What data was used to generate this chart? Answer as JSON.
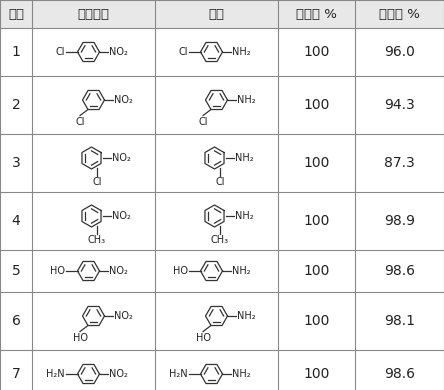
{
  "headers": [
    "序号",
    "反应原料",
    "产物",
    "转化率 %",
    "选择性 %"
  ],
  "rows": [
    {
      "no": "1",
      "conversion": "100",
      "selectivity": "96.0"
    },
    {
      "no": "2",
      "conversion": "100",
      "selectivity": "94.3"
    },
    {
      "no": "3",
      "conversion": "100",
      "selectivity": "87.3"
    },
    {
      "no": "4",
      "conversion": "100",
      "selectivity": "98.9"
    },
    {
      "no": "5",
      "conversion": "100",
      "selectivity": "98.6"
    },
    {
      "no": "6",
      "conversion": "100",
      "selectivity": "98.1"
    },
    {
      "no": "7",
      "conversion": "100",
      "selectivity": "98.6"
    }
  ],
  "bg_color": "#ffffff",
  "header_bg": "#e8e8e8",
  "line_color": "#888888",
  "text_color": "#222222",
  "font_size": 9,
  "header_font_size": 9.5
}
